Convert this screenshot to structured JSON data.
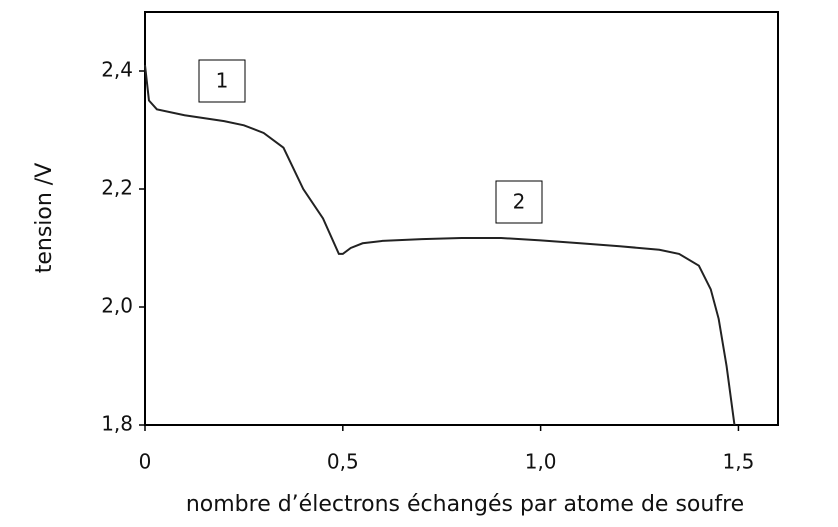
{
  "chart_data": {
    "type": "line",
    "x_label": "nombre d’électrons échangés par atome de soufre",
    "y_label": "tension /V",
    "annotations": [
      "1",
      "2"
    ],
    "xlim": [
      0,
      1.6
    ],
    "ylim": [
      1.8,
      2.5
    ],
    "xticks": [
      0,
      {
        "value": 0.5,
        "label": "0,5"
      },
      {
        "value": 1.0,
        "label": "1,0"
      },
      {
        "value": 1.5,
        "label": "1,5"
      }
    ],
    "yticks": [
      {
        "value": 1.8,
        "label": "1,8"
      },
      {
        "value": 2.0,
        "label": "2,0"
      },
      {
        "value": 2.2,
        "label": "2,2"
      },
      {
        "value": 2.4,
        "label": "2,4"
      }
    ],
    "color": "#222222",
    "x": [
      0,
      0.01,
      0.03,
      0.1,
      0.2,
      0.25,
      0.3,
      0.35,
      0.4,
      0.45,
      0.49,
      0.5,
      0.52,
      0.55,
      0.6,
      0.7,
      0.8,
      0.9,
      1.0,
      1.1,
      1.2,
      1.3,
      1.35,
      1.4,
      1.43,
      1.45,
      1.47,
      1.49
    ],
    "values": [
      2.41,
      2.35,
      2.335,
      2.325,
      2.315,
      2.308,
      2.295,
      2.27,
      2.2,
      2.15,
      2.09,
      2.09,
      2.1,
      2.108,
      2.112,
      2.115,
      2.117,
      2.117,
      2.113,
      2.108,
      2.103,
      2.097,
      2.09,
      2.07,
      2.03,
      1.98,
      1.9,
      1.8
    ]
  }
}
